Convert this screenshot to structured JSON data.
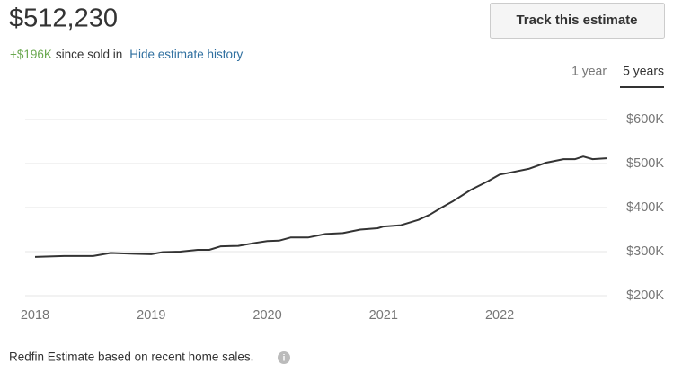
{
  "header": {
    "price": "$512,230",
    "button": "Track this estimate",
    "change": "+$196K",
    "change_text": "since sold in",
    "link": "Hide estimate history"
  },
  "tabs": [
    "1 year",
    "5 years"
  ],
  "chart_data": {
    "type": "line",
    "color": "#333333",
    "x": [
      2018.0,
      2018.25,
      2018.5,
      2018.65,
      2018.85,
      2019.0,
      2019.1,
      2019.25,
      2019.4,
      2019.5,
      2019.6,
      2019.75,
      2019.9,
      2020.0,
      2020.1,
      2020.2,
      2020.35,
      2020.5,
      2020.65,
      2020.8,
      2020.95,
      2021.0,
      2021.15,
      2021.3,
      2021.4,
      2021.5,
      2021.6,
      2021.75,
      2021.9,
      2022.0,
      2022.1,
      2022.25,
      2022.4,
      2022.55,
      2022.65,
      2022.72,
      2022.8,
      2022.92
    ],
    "values": [
      288000,
      290000,
      290000,
      297000,
      295000,
      294000,
      299000,
      300000,
      304000,
      304000,
      312000,
      313000,
      320000,
      324000,
      325000,
      332000,
      332000,
      340000,
      342000,
      350000,
      353000,
      357000,
      360000,
      372000,
      384000,
      400000,
      415000,
      440000,
      460000,
      475000,
      480000,
      488000,
      502000,
      510000,
      510000,
      516000,
      510000,
      512000
    ],
    "xlim": [
      2017.915,
      2022.92
    ],
    "xticks": [
      2018,
      2019,
      2020,
      2021,
      2022
    ],
    "ylim": [
      200000,
      600000
    ],
    "yticks": [
      {
        "value": 200000,
        "label": "$200K"
      },
      {
        "value": 300000,
        "label": "$300K"
      },
      {
        "value": 400000,
        "label": "$400K"
      },
      {
        "value": 500000,
        "label": "$500K"
      },
      {
        "value": 600000,
        "label": "$600K"
      }
    ],
    "grid": true
  },
  "footer": {
    "note": "Redfin Estimate based on recent home sales."
  }
}
